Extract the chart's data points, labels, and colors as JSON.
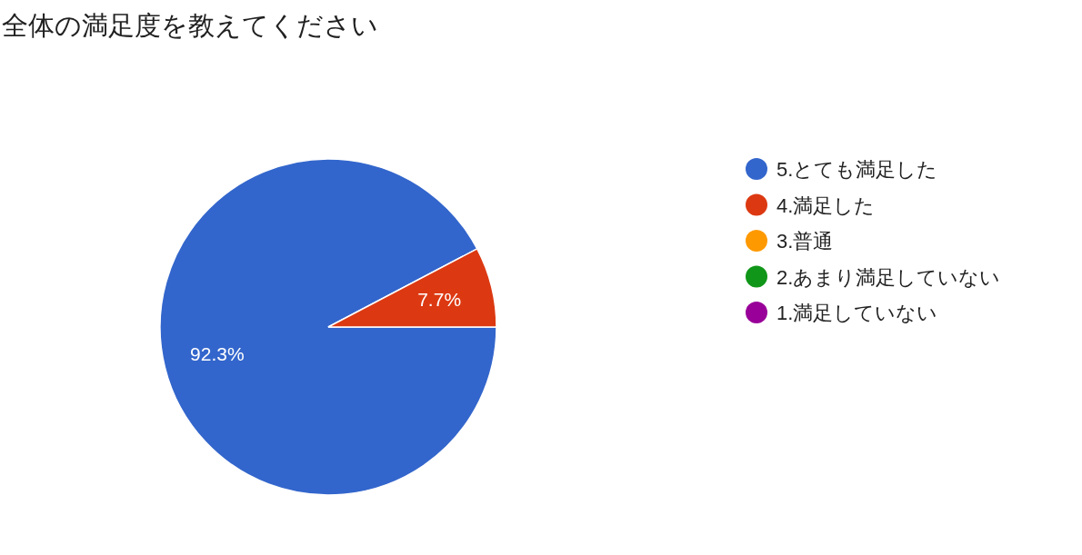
{
  "chart_data": {
    "type": "pie",
    "title": "全体の満足度を教えてください",
    "categories": [
      "5.とても満足した",
      "4.満足した",
      "3.普通",
      "2.あまり満足していない",
      "1.満足していない"
    ],
    "values": [
      92.3,
      7.7,
      0,
      0,
      0
    ],
    "colors": [
      "#3366cc",
      "#dc3912",
      "#ff9900",
      "#109618",
      "#990099"
    ],
    "value_labels": [
      "92.3%",
      "7.7%",
      null,
      null,
      null
    ],
    "legend": "right"
  }
}
